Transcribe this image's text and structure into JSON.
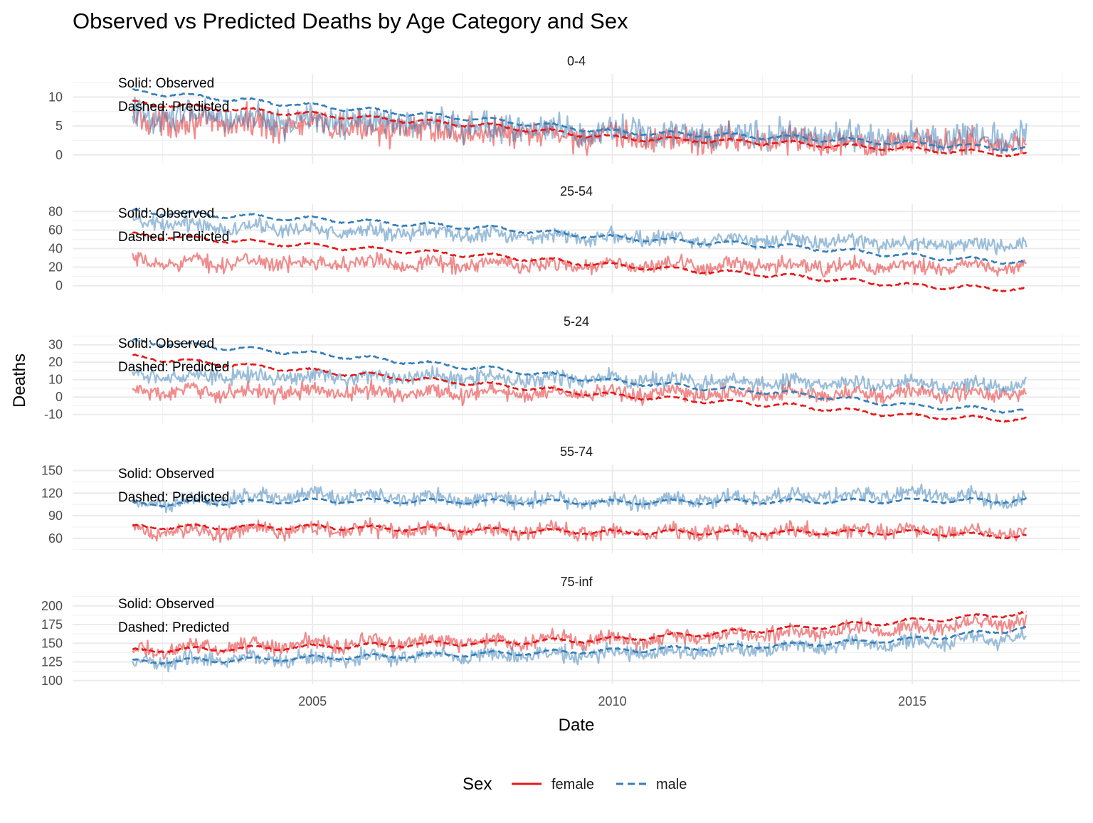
{
  "chart_data": {
    "type": "line",
    "title": "Observed vs Predicted Deaths by Age Category and Sex",
    "xlabel": "Date",
    "ylabel": "Deaths",
    "xlim": [
      2001.0,
      2017.8
    ],
    "x_ticks": [
      2005,
      2010,
      2015
    ],
    "x_range_data": [
      2002.0,
      2016.9
    ],
    "legend": {
      "title": "Sex",
      "position": "bottom",
      "entries": [
        {
          "label": "female",
          "color": "#e41a1c",
          "linetype": "solid"
        },
        {
          "label": "male",
          "color": "#377eb8",
          "linetype": "dashed"
        }
      ]
    },
    "grid": true,
    "panels": [
      {
        "label": "0-4",
        "ylim": [
          -1.5,
          14
        ],
        "y_ticks": [
          0,
          5,
          10
        ],
        "annotations": [
          "Solid: Observed",
          "Dashed: Predicted"
        ],
        "series": [
          {
            "name": "female",
            "kind": "observed",
            "values_approx": [
              [
                2002,
                6
              ],
              [
                2005,
                5
              ],
              [
                2010,
                3
              ],
              [
                2015,
                2
              ],
              [
                2016.9,
                2
              ]
            ],
            "range_approx": [
              0,
              12
            ]
          },
          {
            "name": "male",
            "kind": "observed",
            "values_approx": [
              [
                2002,
                7
              ],
              [
                2005,
                6
              ],
              [
                2010,
                4
              ],
              [
                2015,
                3
              ],
              [
                2016.9,
                3
              ]
            ],
            "range_approx": [
              0,
              12
            ]
          },
          {
            "name": "female",
            "kind": "predicted",
            "values_approx": [
              [
                2002,
                9
              ],
              [
                2005,
                7
              ],
              [
                2008,
                5
              ],
              [
                2010,
                3
              ],
              [
                2013,
                2
              ],
              [
                2015,
                1
              ],
              [
                2016.9,
                0
              ]
            ]
          },
          {
            "name": "male",
            "kind": "predicted",
            "values_approx": [
              [
                2002,
                11
              ],
              [
                2005,
                8.5
              ],
              [
                2008,
                6
              ],
              [
                2010,
                4
              ],
              [
                2013,
                3
              ],
              [
                2015,
                2
              ],
              [
                2016.9,
                1
              ]
            ]
          }
        ]
      },
      {
        "label": "25-54",
        "ylim": [
          -8,
          88
        ],
        "y_ticks": [
          0,
          20,
          40,
          60,
          80
        ],
        "annotations": [
          "Solid: Observed",
          "Dashed: Predicted"
        ],
        "series": [
          {
            "name": "female",
            "kind": "observed",
            "values_approx": [
              [
                2002,
                25
              ],
              [
                2005,
                25
              ],
              [
                2010,
                22
              ],
              [
                2015,
                20
              ],
              [
                2016.9,
                20
              ]
            ]
          },
          {
            "name": "male",
            "kind": "observed",
            "values_approx": [
              [
                2002,
                68
              ],
              [
                2005,
                60
              ],
              [
                2010,
                52
              ],
              [
                2015,
                45
              ],
              [
                2016.9,
                45
              ]
            ]
          },
          {
            "name": "female",
            "kind": "predicted",
            "values_approx": [
              [
                2002,
                55
              ],
              [
                2005,
                43
              ],
              [
                2008,
                32
              ],
              [
                2010,
                22
              ],
              [
                2013,
                10
              ],
              [
                2015,
                0
              ],
              [
                2016.9,
                -4
              ]
            ]
          },
          {
            "name": "male",
            "kind": "predicted",
            "values_approx": [
              [
                2002,
                80
              ],
              [
                2005,
                72
              ],
              [
                2008,
                62
              ],
              [
                2010,
                52
              ],
              [
                2013,
                42
              ],
              [
                2015,
                32
              ],
              [
                2016.9,
                25
              ]
            ]
          }
        ]
      },
      {
        "label": "5-24",
        "ylim": [
          -15,
          36
        ],
        "y_ticks": [
          -10,
          0,
          10,
          20,
          30
        ],
        "annotations": [
          "Solid: Observed",
          "Dashed: Predicted"
        ],
        "series": [
          {
            "name": "female",
            "kind": "observed",
            "values_approx": [
              [
                2002,
                3
              ],
              [
                2005,
                3
              ],
              [
                2010,
                2
              ],
              [
                2015,
                2
              ],
              [
                2016.9,
                2
              ]
            ]
          },
          {
            "name": "male",
            "kind": "observed",
            "values_approx": [
              [
                2002,
                12
              ],
              [
                2005,
                12
              ],
              [
                2010,
                10
              ],
              [
                2015,
                7
              ],
              [
                2016.9,
                7
              ]
            ]
          },
          {
            "name": "female",
            "kind": "predicted",
            "values_approx": [
              [
                2002,
                23
              ],
              [
                2005,
                15
              ],
              [
                2008,
                7
              ],
              [
                2010,
                1
              ],
              [
                2013,
                -5
              ],
              [
                2015,
                -11
              ],
              [
                2016.9,
                -13
              ]
            ]
          },
          {
            "name": "male",
            "kind": "predicted",
            "values_approx": [
              [
                2002,
                32
              ],
              [
                2005,
                25
              ],
              [
                2008,
                16
              ],
              [
                2010,
                9
              ],
              [
                2013,
                2
              ],
              [
                2015,
                -5
              ],
              [
                2016.9,
                -8
              ]
            ]
          }
        ]
      },
      {
        "label": "55-74",
        "ylim": [
          40,
          158
        ],
        "y_ticks": [
          60,
          90,
          120,
          150
        ],
        "annotations": [
          "Solid: Observed",
          "Dashed: Predicted"
        ],
        "series": [
          {
            "name": "female",
            "kind": "observed",
            "values_approx": [
              [
                2002,
                68
              ],
              [
                2005,
                72
              ],
              [
                2010,
                68
              ],
              [
                2015,
                70
              ],
              [
                2016.9,
                68
              ]
            ]
          },
          {
            "name": "male",
            "kind": "observed",
            "values_approx": [
              [
                2002,
                105
              ],
              [
                2005,
                118
              ],
              [
                2010,
                108
              ],
              [
                2015,
                120
              ],
              [
                2016.9,
                110
              ]
            ]
          },
          {
            "name": "female",
            "kind": "predicted",
            "values_approx": [
              [
                2002,
                75
              ],
              [
                2005,
                75
              ],
              [
                2010,
                68
              ],
              [
                2015,
                68
              ],
              [
                2016.9,
                62
              ]
            ]
          },
          {
            "name": "male",
            "kind": "predicted",
            "values_approx": [
              [
                2002,
                105
              ],
              [
                2005,
                110
              ],
              [
                2010,
                108
              ],
              [
                2015,
                110
              ],
              [
                2016.9,
                110
              ]
            ]
          }
        ]
      },
      {
        "label": "75-inf",
        "ylim": [
          95,
          215
        ],
        "y_ticks": [
          100,
          125,
          150,
          175,
          200
        ],
        "annotations": [
          "Solid: Observed",
          "Dashed: Predicted"
        ],
        "series": [
          {
            "name": "female",
            "kind": "observed",
            "values_approx": [
              [
                2002,
                140
              ],
              [
                2005,
                150
              ],
              [
                2010,
                155
              ],
              [
                2013,
                165
              ],
              [
                2015,
                170
              ],
              [
                2016.9,
                180
              ]
            ]
          },
          {
            "name": "male",
            "kind": "observed",
            "values_approx": [
              [
                2002,
                125
              ],
              [
                2005,
                130
              ],
              [
                2010,
                135
              ],
              [
                2013,
                145
              ],
              [
                2015,
                150
              ],
              [
                2016.9,
                160
              ]
            ]
          },
          {
            "name": "female",
            "kind": "predicted",
            "values_approx": [
              [
                2002,
                140
              ],
              [
                2005,
                145
              ],
              [
                2010,
                155
              ],
              [
                2013,
                170
              ],
              [
                2015,
                180
              ],
              [
                2016.9,
                190
              ]
            ]
          },
          {
            "name": "male",
            "kind": "predicted",
            "values_approx": [
              [
                2002,
                125
              ],
              [
                2005,
                130
              ],
              [
                2010,
                140
              ],
              [
                2013,
                148
              ],
              [
                2015,
                155
              ],
              [
                2016.9,
                170
              ]
            ]
          }
        ]
      }
    ]
  }
}
